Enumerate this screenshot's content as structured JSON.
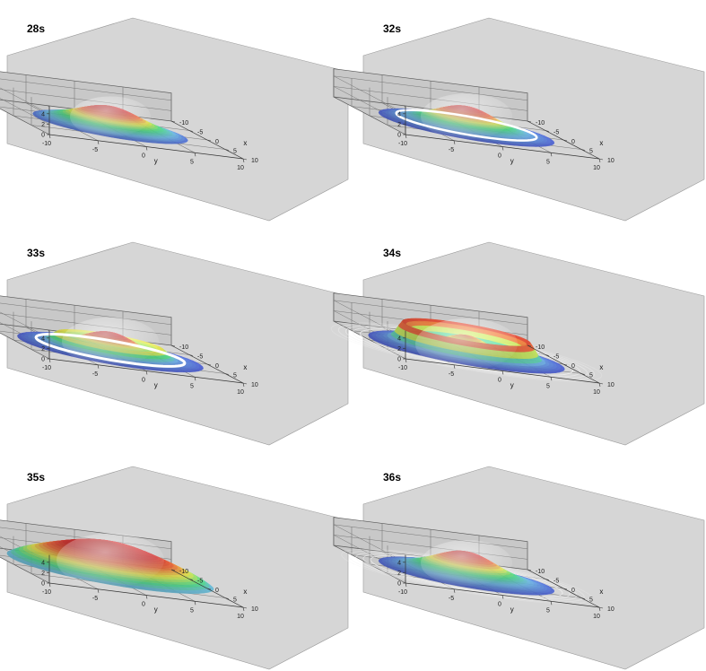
{
  "chart_data": [
    {
      "type": "surface3d",
      "time_label": "28s",
      "xlabel": "x",
      "ylabel": "y",
      "x_ticks": [
        "-10",
        "-5",
        "0",
        "5",
        "10"
      ],
      "y_ticks": [
        "-10",
        "-5",
        "0",
        "5",
        "10"
      ],
      "z_ticks": [
        "0",
        "2",
        "4"
      ],
      "xlim": [
        -10,
        10
      ],
      "ylim": [
        -10,
        10
      ],
      "zlim": [
        0,
        5
      ],
      "shape": {
        "peak_height": 3.6,
        "peak_width": 3.0,
        "base_radius": 7.5,
        "base_height": 0.5,
        "ring": null,
        "rim": null,
        "ripples": false
      }
    },
    {
      "type": "surface3d",
      "time_label": "32s",
      "xlabel": "x",
      "ylabel": "y",
      "x_ticks": [
        "-10",
        "-5",
        "0",
        "5",
        "10"
      ],
      "y_ticks": [
        "-10",
        "-5",
        "0",
        "5",
        "10"
      ],
      "z_ticks": [
        "0",
        "2",
        "4"
      ],
      "xlim": [
        -10,
        10
      ],
      "ylim": [
        -10,
        10
      ],
      "zlim": [
        0,
        5
      ],
      "shape": {
        "peak_height": 3.7,
        "peak_width": 2.8,
        "base_radius": 8.5,
        "base_height": 0.4,
        "ring": {
          "radius": 6.8,
          "width": 0.5
        },
        "rim": null,
        "ripples": false
      }
    },
    {
      "type": "surface3d",
      "time_label": "33s",
      "xlabel": "x",
      "ylabel": "y",
      "x_ticks": [
        "-10",
        "-5",
        "0",
        "5",
        "10"
      ],
      "y_ticks": [
        "-10",
        "-5",
        "0",
        "5",
        "10"
      ],
      "z_ticks": [
        "0",
        "2",
        "4"
      ],
      "xlim": [
        -10,
        10
      ],
      "ylim": [
        -10,
        10
      ],
      "zlim": [
        0,
        5
      ],
      "shape": {
        "peak_height": 3.4,
        "peak_width": 2.5,
        "base_radius": 9.0,
        "base_height": 0.4,
        "ring": {
          "radius": 7.2,
          "width": 0.6
        },
        "rim": {
          "radius": 5.0,
          "height": 1.4
        },
        "ripples": false
      }
    },
    {
      "type": "surface3d",
      "time_label": "34s",
      "xlabel": "x",
      "ylabel": "y",
      "x_ticks": [
        "-10",
        "-5",
        "0",
        "5",
        "10"
      ],
      "y_ticks": [
        "-10",
        "-5",
        "0",
        "5",
        "10"
      ],
      "z_ticks": [
        "0",
        "2",
        "4"
      ],
      "xlim": [
        -10,
        10
      ],
      "ylim": [
        -10,
        10
      ],
      "zlim": [
        0,
        5
      ],
      "shape": {
        "peak_height": 2.6,
        "peak_width": 2.0,
        "base_radius": 9.5,
        "base_height": 0.6,
        "ring": null,
        "rim": {
          "radius": 6.0,
          "height": 3.4
        },
        "ripples": true
      }
    },
    {
      "type": "surface3d",
      "time_label": "35s",
      "xlabel": "x",
      "ylabel": "y",
      "x_ticks": [
        "-10",
        "-5",
        "0",
        "5",
        "10"
      ],
      "y_ticks": [
        "-10",
        "-5",
        "0",
        "5",
        "10"
      ],
      "z_ticks": [
        "0",
        "2",
        "4"
      ],
      "xlim": [
        -10,
        10
      ],
      "ylim": [
        -10,
        10
      ],
      "zlim": [
        0,
        5
      ],
      "shape": {
        "peak_height": 5.2,
        "peak_width": 5.5,
        "base_radius": 10.0,
        "base_height": 1.4,
        "ring": null,
        "rim": null,
        "ripples": false
      }
    },
    {
      "type": "surface3d",
      "time_label": "36s",
      "xlabel": "x",
      "ylabel": "y",
      "x_ticks": [
        "-10",
        "-5",
        "0",
        "5",
        "10"
      ],
      "y_ticks": [
        "-10",
        "-5",
        "0",
        "5",
        "10"
      ],
      "z_ticks": [
        "0",
        "2",
        "4"
      ],
      "xlim": [
        -10,
        10
      ],
      "ylim": [
        -10,
        10
      ],
      "zlim": [
        0,
        5
      ],
      "shape": {
        "peak_height": 4.3,
        "peak_width": 3.0,
        "base_radius": 8.5,
        "base_height": 0.4,
        "ring": null,
        "rim": null,
        "ripples": true
      }
    }
  ],
  "colors": {
    "wall": "#c8c8c8",
    "floor": "#d6d6d6",
    "grid": "#777777",
    "colormap": [
      "#4b5bd6",
      "#6fb8ea",
      "#4fe08c",
      "#e8ec4e",
      "#f06a3a",
      "#d42a2a"
    ]
  }
}
